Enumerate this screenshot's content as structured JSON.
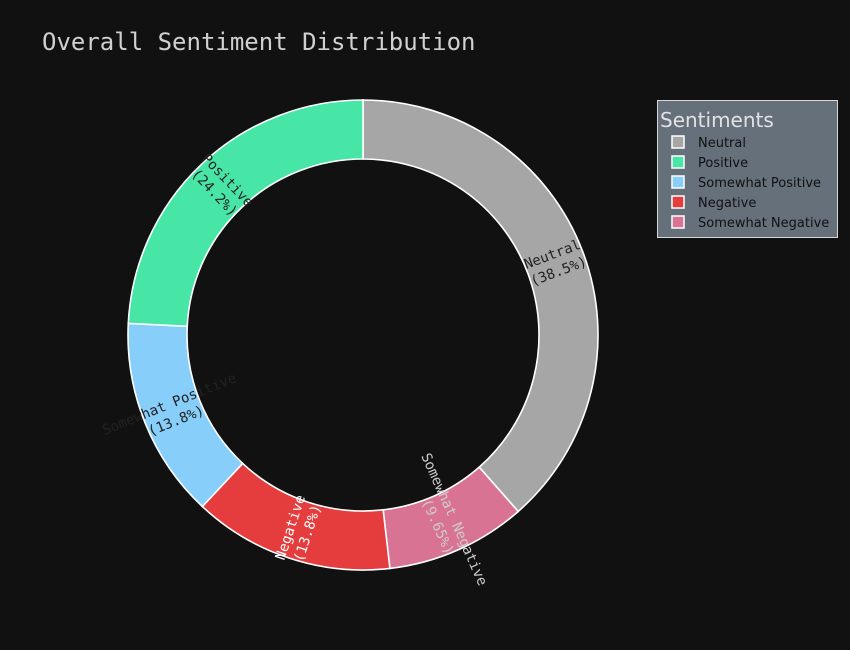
{
  "chart_data": {
    "type": "pie",
    "title": "Overall Sentiment Distribution",
    "hole": true,
    "legend_title": "Sentiments",
    "legend_position": "top-right",
    "slices": [
      {
        "label": "Neutral",
        "percent": 38.5,
        "percent_label": "(38.5%)",
        "color": "#a6a6a6",
        "text_color": "#222222"
      },
      {
        "label": "Somewhat Negative",
        "percent": 9.65,
        "percent_label": "(9.65%)",
        "color": "#d97394",
        "text_color": "#cccccc"
      },
      {
        "label": "Negative",
        "percent": 13.8,
        "percent_label": "(13.8%)",
        "color": "#e53d3d",
        "text_color": "#ffffff"
      },
      {
        "label": "Somewhat Positive",
        "percent": 13.8,
        "percent_label": "(13.8%)",
        "color": "#87cefa",
        "text_color": "#222222"
      },
      {
        "label": "Positive",
        "percent": 24.2,
        "percent_label": "(24.2%)",
        "color": "#47e5a6",
        "text_color": "#222222"
      }
    ],
    "legend_order": [
      "Neutral",
      "Positive",
      "Somewhat Positive",
      "Negative",
      "Somewhat Negative"
    ]
  }
}
